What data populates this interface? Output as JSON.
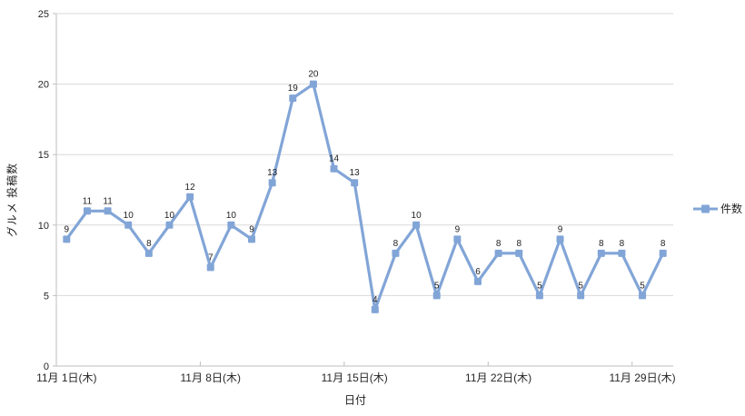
{
  "chart_data": {
    "type": "line",
    "title": "",
    "xlabel": "日付",
    "ylabel": "グルメ 投稿数",
    "ylim": [
      0,
      25
    ],
    "yticks": [
      0,
      5,
      10,
      15,
      20,
      25
    ],
    "x_tick_labels": [
      "11月 1日(木)",
      "11月 8日(木)",
      "11月 15日(木)",
      "11月 22日(木)",
      "11月 29日(木)"
    ],
    "x_tick_indices": [
      0,
      7,
      14,
      21,
      28
    ],
    "grid": true,
    "legend_position": "right",
    "series": [
      {
        "name": "件数",
        "marker": "square",
        "data_labels": true,
        "values": [
          9,
          11,
          11,
          10,
          8,
          10,
          12,
          7,
          10,
          9,
          13,
          19,
          20,
          14,
          13,
          4,
          8,
          10,
          5,
          9,
          6,
          8,
          8,
          5,
          9,
          5,
          8,
          8,
          5,
          8
        ]
      }
    ],
    "colors": {
      "series": "#82a5d7",
      "gridline": "#d9d9d9",
      "axis": "#bfbfbf",
      "tick_label_text": "#262626",
      "data_label_text": "#1f1f1f"
    }
  }
}
